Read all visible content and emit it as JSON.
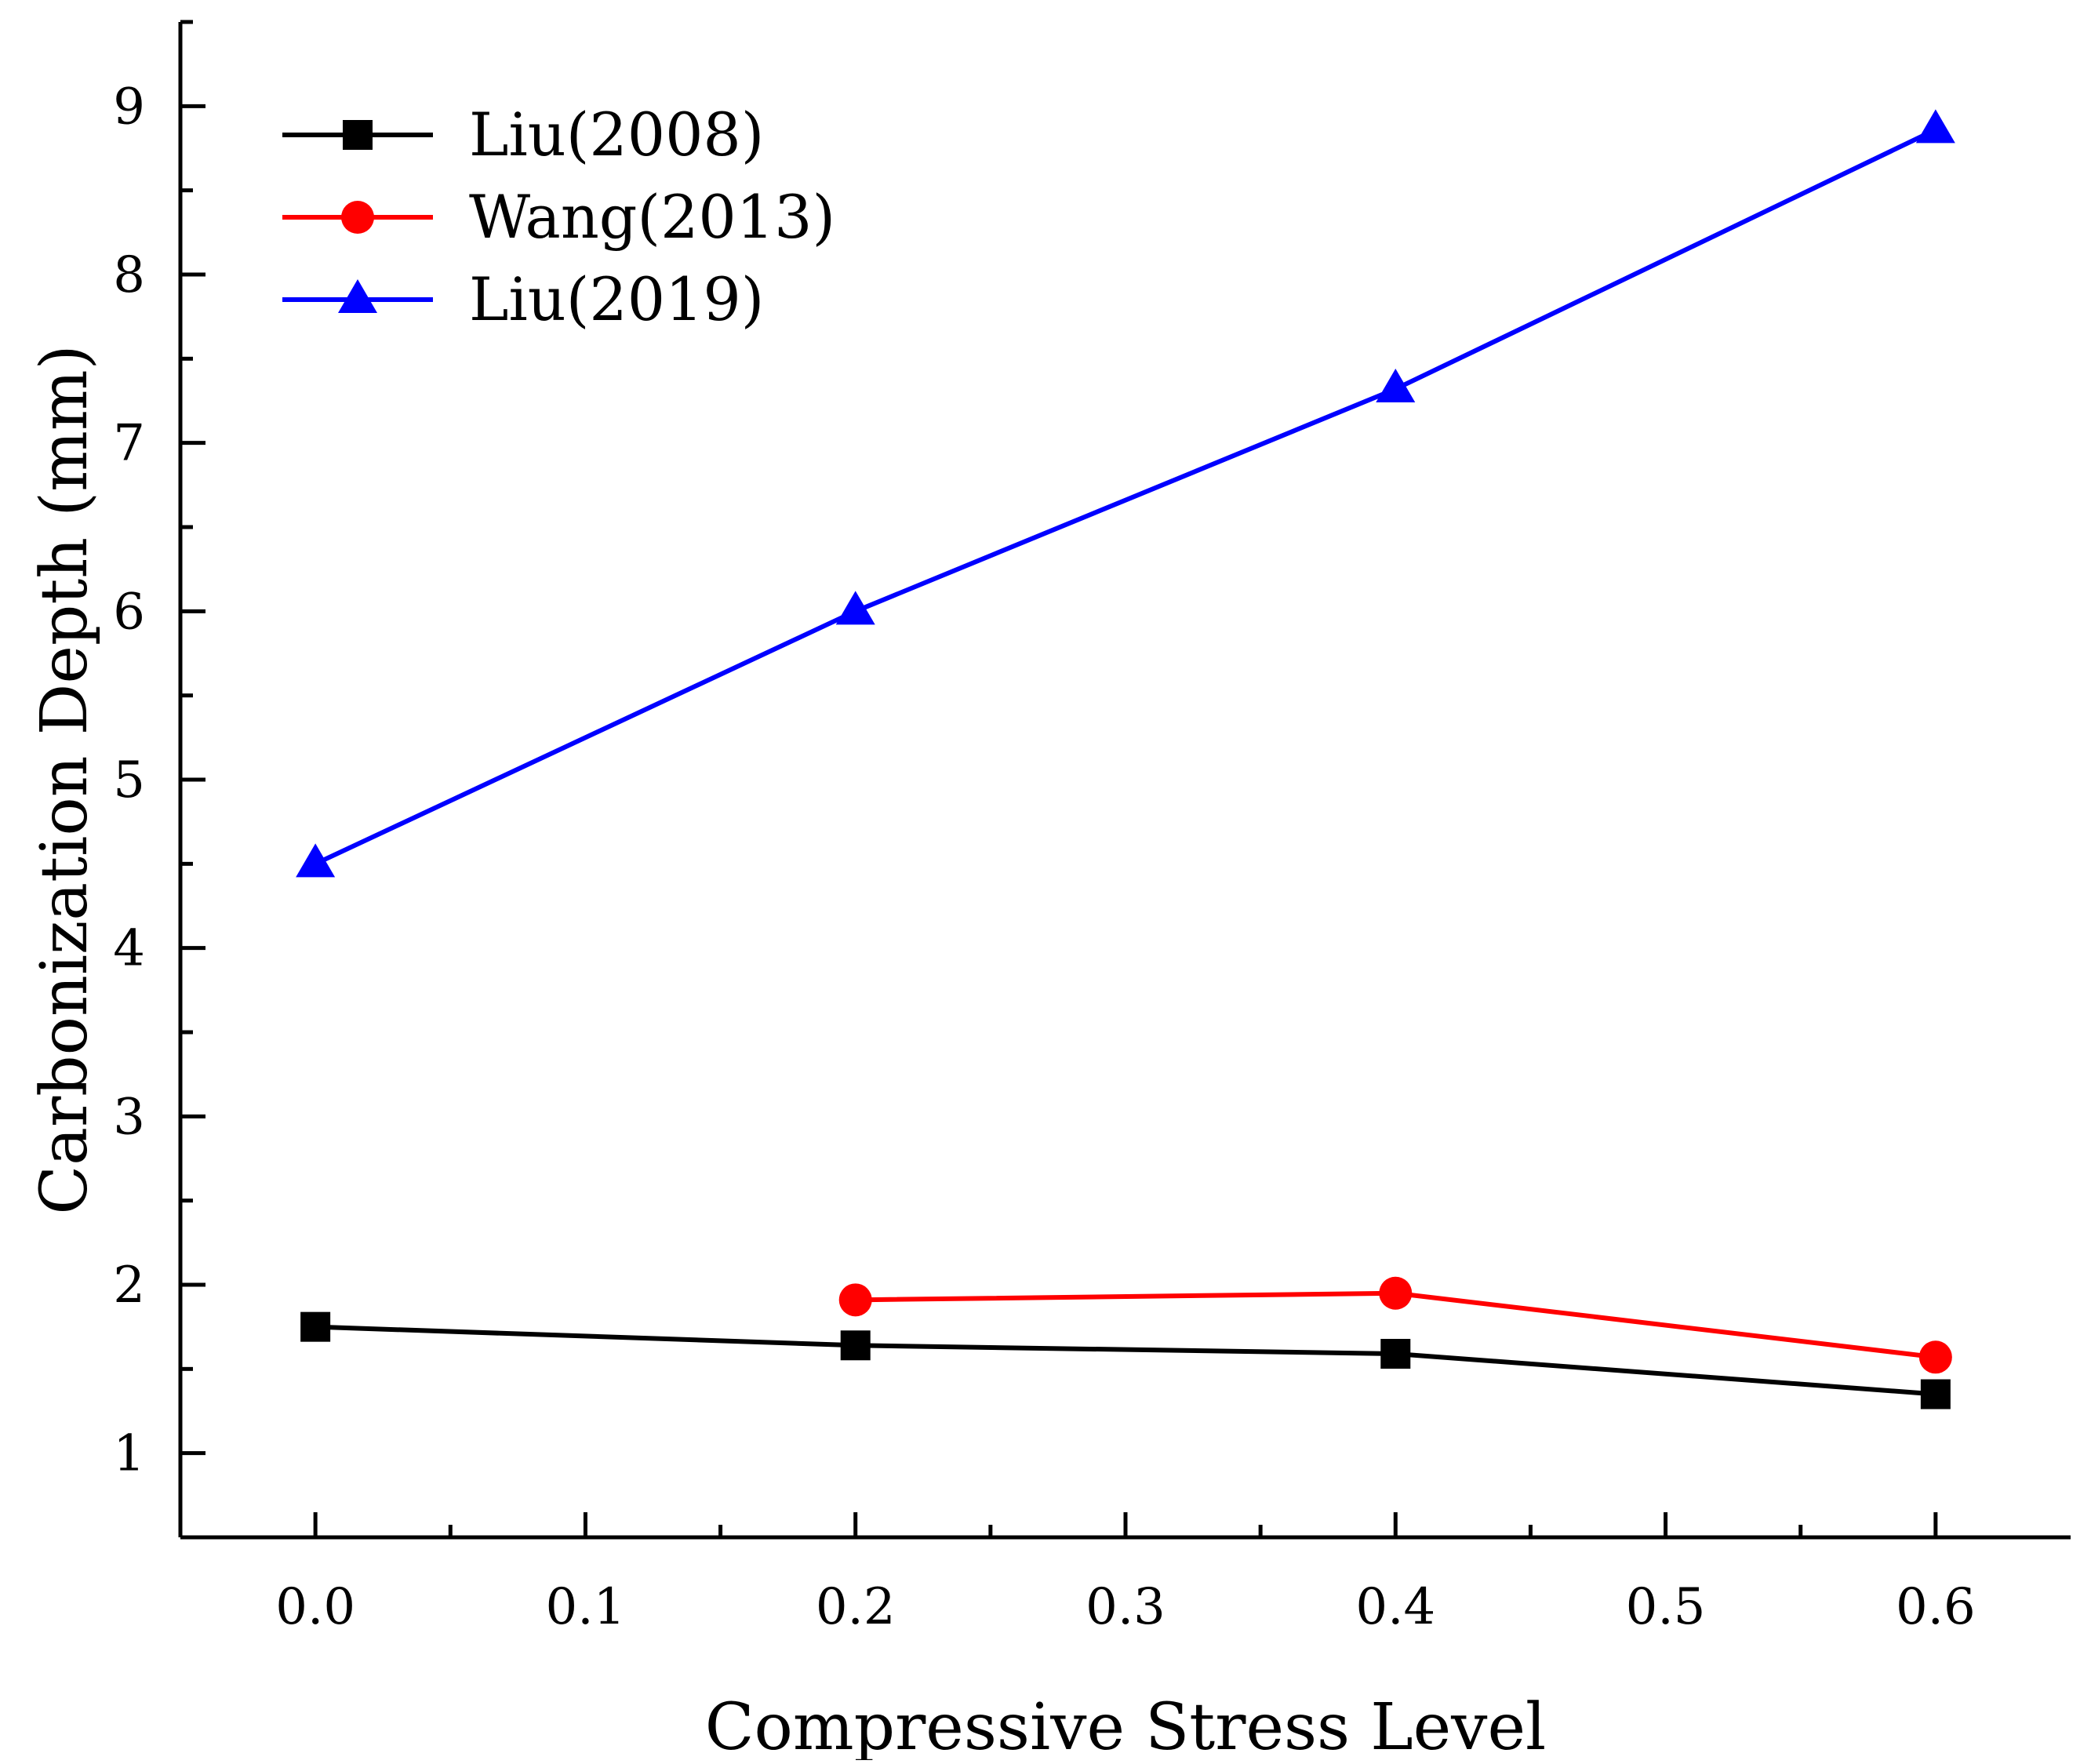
{
  "chart_data": {
    "type": "line",
    "title": "",
    "xlabel": "Compressive Stress Level",
    "ylabel": "Carbonization Depth (mm)",
    "xlim": [
      -0.05,
      0.65
    ],
    "ylim": [
      0.5,
      9.5
    ],
    "xticks": [
      0.0,
      0.1,
      0.2,
      0.3,
      0.4,
      0.5,
      0.6
    ],
    "xtick_labels": [
      "0.0",
      "0.1",
      "0.2",
      "0.3",
      "0.4",
      "0.5",
      "0.6"
    ],
    "yticks": [
      1,
      2,
      3,
      4,
      5,
      6,
      7,
      8,
      9
    ],
    "ytick_labels": [
      "1",
      "2",
      "3",
      "4",
      "5",
      "6",
      "7",
      "8",
      "9"
    ],
    "grid": false,
    "legend_position": "top-left",
    "series": [
      {
        "name": "Liu(2008)",
        "color": "#000000",
        "marker": "square",
        "x": [
          0.0,
          0.2,
          0.4,
          0.6
        ],
        "values": [
          1.75,
          1.64,
          1.59,
          1.35
        ]
      },
      {
        "name": "Wang(2013)",
        "color": "#ff0000",
        "marker": "circle",
        "x": [
          0.2,
          0.4,
          0.6
        ],
        "values": [
          1.91,
          1.95,
          1.57
        ]
      },
      {
        "name": "Liu(2019)",
        "color": "#0000ff",
        "marker": "triangle",
        "x": [
          0.0,
          0.2,
          0.4,
          0.6
        ],
        "values": [
          4.5,
          6.0,
          7.32,
          8.86
        ]
      }
    ]
  }
}
